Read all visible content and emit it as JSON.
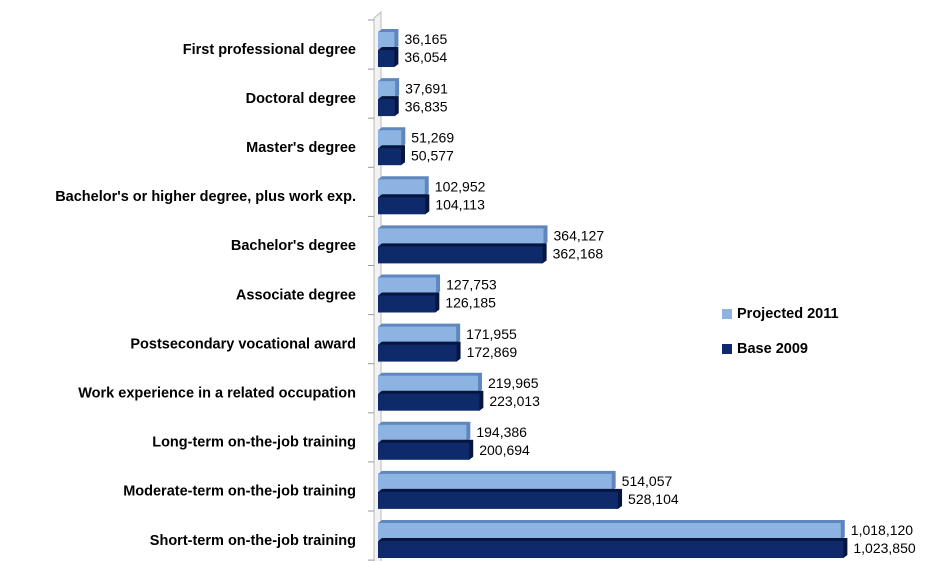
{
  "chart_data": {
    "type": "bar",
    "orientation": "horizontal",
    "categories": [
      "First professional degree",
      "Doctoral degree",
      "Master's degree",
      "Bachelor's or higher degree, plus work exp.",
      "Bachelor's degree",
      "Associate degree",
      "Postsecondary vocational award",
      "Work experience in a related occupation",
      "Long-term on-the-job training",
      "Moderate-term on-the-job training",
      "Short-term on-the-job training"
    ],
    "series": [
      {
        "name": "Projected 2011",
        "color": "#8db3e2",
        "values": [
          36165,
          37691,
          51269,
          102952,
          364127,
          127753,
          171955,
          219965,
          194386,
          514057,
          1018120
        ],
        "value_labels": [
          "36,165",
          "37,691",
          "51,269",
          "102,952",
          "364,127",
          "127,753",
          "171,955",
          "219,965",
          "194,386",
          "514,057",
          "1,018,120"
        ]
      },
      {
        "name": "Base 2009",
        "color": "#0f2a6b",
        "values": [
          36054,
          36835,
          50577,
          104113,
          362168,
          126185,
          172869,
          223013,
          200694,
          528104,
          1023850
        ],
        "value_labels": [
          "36,054",
          "36,835",
          "50,577",
          "104,113",
          "362,168",
          "126,185",
          "172,869",
          "223,013",
          "200,694",
          "528,104",
          "1,023,850"
        ]
      }
    ],
    "xlim": [
      0,
      1100000
    ],
    "legend": "right"
  }
}
